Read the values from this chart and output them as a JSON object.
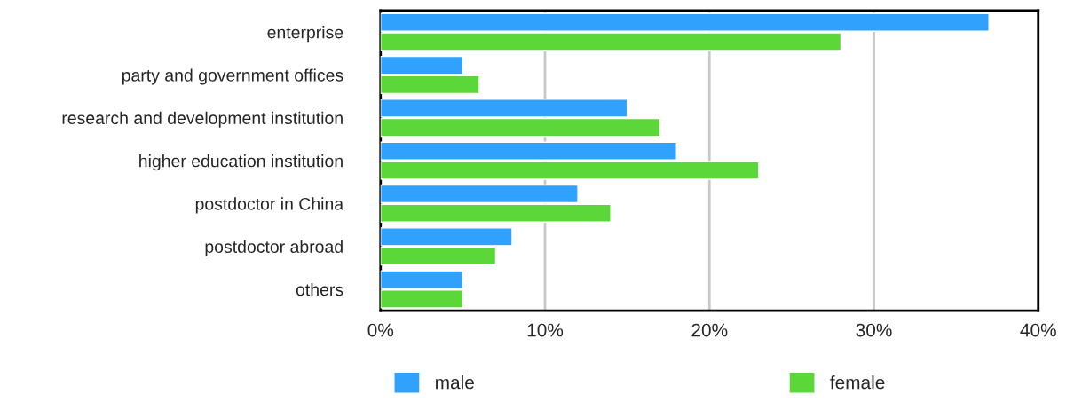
{
  "chart_data": {
    "type": "bar",
    "orientation": "horizontal",
    "categories": [
      "enterprise",
      "party and government offices",
      "research and development institution",
      "higher education institution",
      "postdoctor in China",
      "postdoctor abroad",
      "others"
    ],
    "series": [
      {
        "name": "male",
        "color": "#30a2fd",
        "values": [
          37,
          5,
          15,
          18,
          12,
          8,
          5
        ]
      },
      {
        "name": "female",
        "color": "#5cd73a",
        "values": [
          28,
          6,
          17,
          23,
          14,
          7,
          5
        ]
      }
    ],
    "xlim": [
      0,
      40
    ],
    "xticks": [
      {
        "value": 0,
        "label": "0%"
      },
      {
        "value": 10,
        "label": "10%"
      },
      {
        "value": 20,
        "label": "20%"
      },
      {
        "value": 30,
        "label": "30%"
      },
      {
        "value": 40,
        "label": "40%"
      }
    ],
    "grid": "x",
    "legend": "bottom"
  }
}
